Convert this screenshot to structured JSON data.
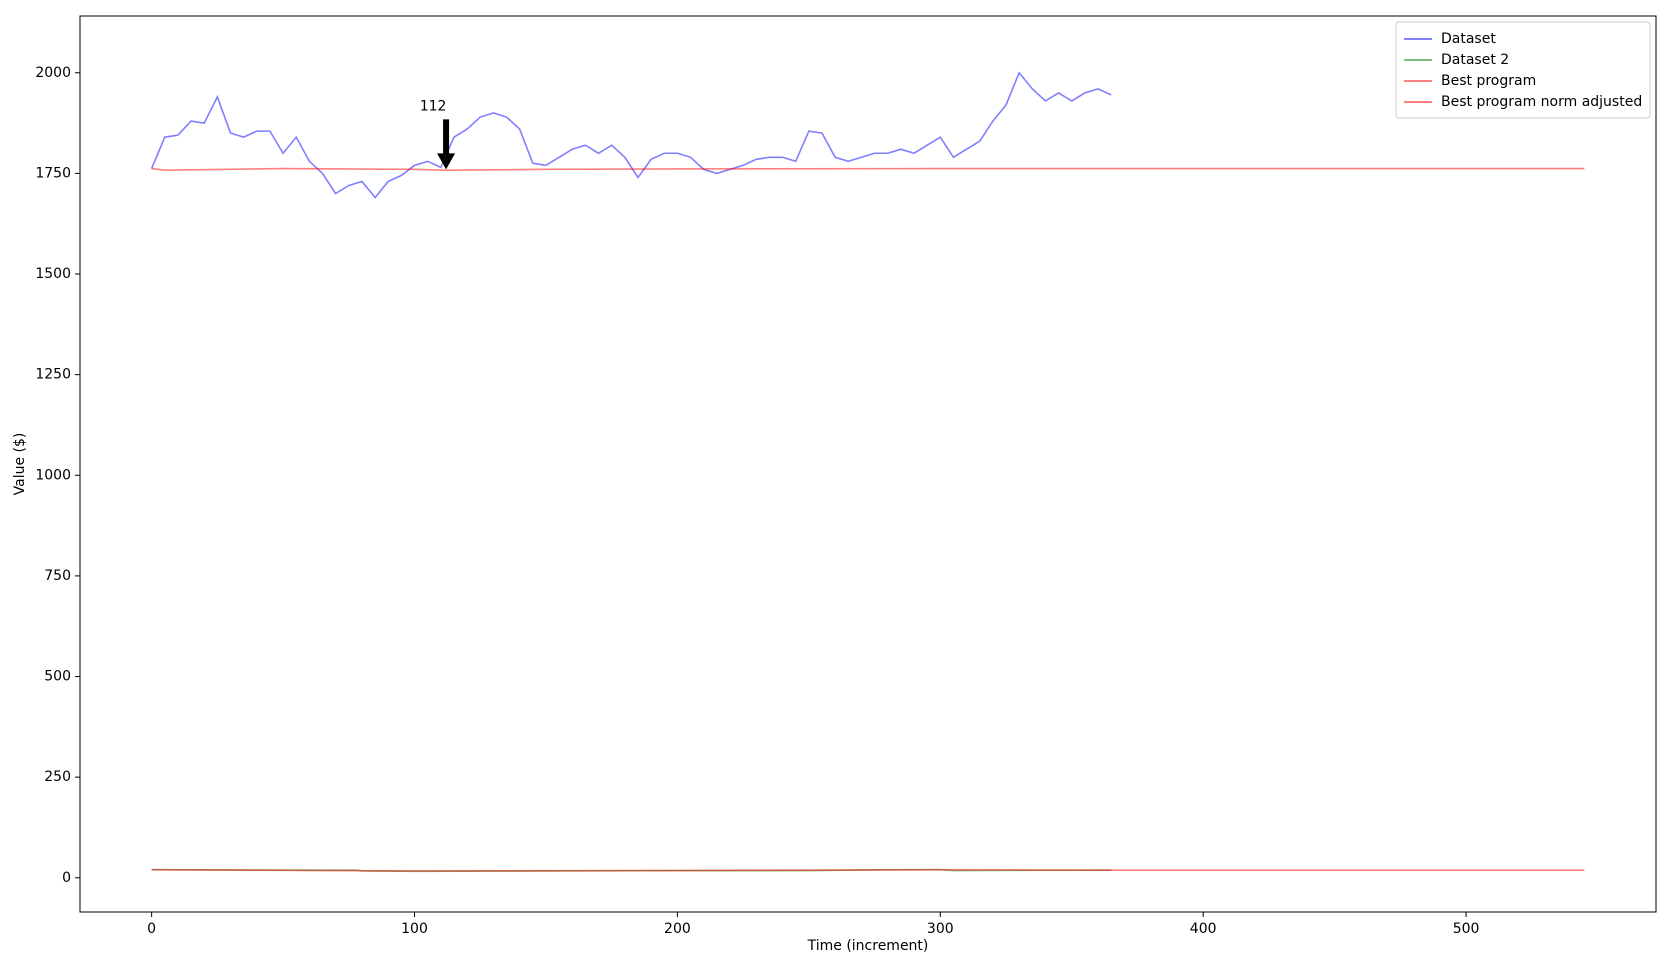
{
  "chart_data": {
    "type": "line",
    "xlabel": "Time (increment)",
    "ylabel": "Value ($)",
    "xlim": [
      -27.25,
      572.25
    ],
    "ylim": [
      -85,
      2141
    ],
    "xticks": [
      0,
      100,
      200,
      300,
      400,
      500
    ],
    "yticks": [
      0,
      250,
      500,
      750,
      1000,
      1250,
      1500,
      1750,
      2000
    ],
    "legend": "upper right",
    "alpha": 0.5,
    "annotation": {
      "text": "112",
      "x": 112,
      "y": 1760
    },
    "series": [
      {
        "name": "Dataset",
        "color": "#0000ff",
        "x": [
          0,
          5,
          10,
          15,
          20,
          25,
          30,
          35,
          40,
          45,
          50,
          55,
          60,
          65,
          70,
          75,
          80,
          85,
          90,
          95,
          100,
          105,
          110,
          115,
          120,
          125,
          130,
          135,
          140,
          145,
          150,
          155,
          160,
          165,
          170,
          175,
          180,
          185,
          190,
          195,
          200,
          205,
          210,
          215,
          220,
          225,
          230,
          235,
          240,
          245,
          250,
          255,
          260,
          265,
          270,
          275,
          280,
          285,
          290,
          295,
          300,
          305,
          310,
          315,
          320,
          325,
          330,
          335,
          340,
          345,
          350,
          355,
          360,
          365
        ],
        "values": [
          1762,
          1840,
          1845,
          1880,
          1875,
          1940,
          1850,
          1840,
          1855,
          1855,
          1800,
          1840,
          1780,
          1750,
          1700,
          1720,
          1730,
          1690,
          1730,
          1745,
          1770,
          1780,
          1765,
          1840,
          1860,
          1890,
          1900,
          1890,
          1860,
          1775,
          1770,
          1790,
          1810,
          1820,
          1800,
          1820,
          1790,
          1740,
          1785,
          1800,
          1800,
          1790,
          1760,
          1750,
          1760,
          1770,
          1785,
          1790,
          1790,
          1780,
          1855,
          1850,
          1790,
          1780,
          1790,
          1800,
          1800,
          1810,
          1800,
          1820,
          1840,
          1790,
          1810,
          1830,
          1880,
          1920,
          2000,
          1960,
          1930,
          1950,
          1930,
          1950,
          1960,
          1945
        ]
      },
      {
        "name": "Dataset 2",
        "color": "#008000",
        "x": [
          0,
          50,
          78,
          80,
          100,
          150,
          200,
          250,
          280,
          300,
          305,
          365
        ],
        "values": [
          20,
          19,
          19,
          17,
          16,
          17,
          18,
          18,
          20,
          20,
          18,
          19
        ]
      },
      {
        "name": "Best program",
        "color": "#ff0000",
        "x": [
          0,
          5,
          50,
          100,
          112,
          150,
          200,
          300,
          400,
          545
        ],
        "values": [
          1762,
          1758,
          1762,
          1760,
          1758,
          1760,
          1761,
          1762,
          1762,
          1762
        ]
      },
      {
        "name": "Best program norm adjusted",
        "color": "#ff0000",
        "x": [
          0,
          100,
          200,
          300,
          365,
          400,
          545
        ],
        "values": [
          20,
          17,
          18,
          20,
          19,
          19,
          19
        ]
      }
    ]
  }
}
